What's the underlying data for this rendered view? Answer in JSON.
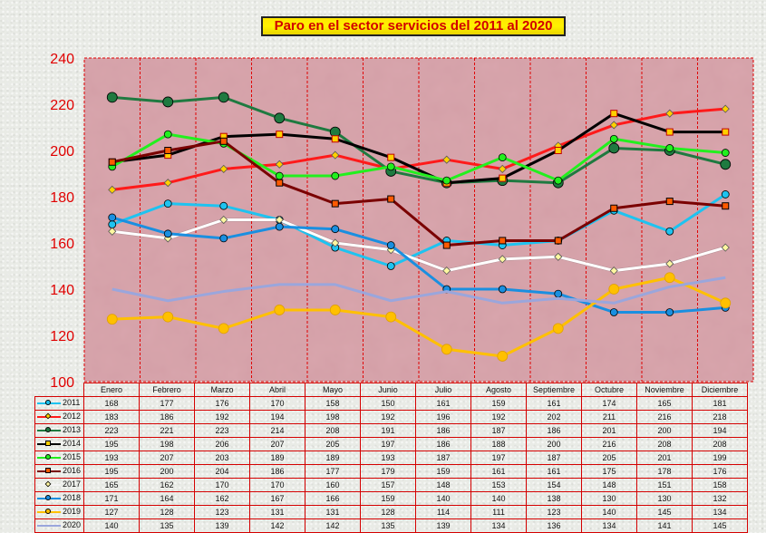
{
  "chart_data": {
    "type": "line",
    "title": "Paro en el sector servicios del 2011 al 2020",
    "categories": [
      "Enero",
      "Febrero",
      "Marzo",
      "Abril",
      "Mayo",
      "Junio",
      "Julio",
      "Agosto",
      "Septiembre",
      "Octubre",
      "Noviembre",
      "Diciembre"
    ],
    "ylim": [
      100,
      240
    ],
    "yticks": [
      "100",
      "120",
      "140",
      "160",
      "180",
      "200",
      "220",
      "240"
    ],
    "grid": true,
    "legend": "data-table-left",
    "series": [
      {
        "name": "2011",
        "color": "#1ec3f0",
        "marker": "circle",
        "values": [
          168,
          177,
          176,
          170,
          158,
          150,
          161,
          159,
          161,
          174,
          165,
          181
        ]
      },
      {
        "name": "2012",
        "color": "#ff1a1a",
        "marker": "diamond",
        "values": [
          183,
          186,
          192,
          194,
          198,
          192,
          196,
          192,
          202,
          211,
          216,
          218
        ]
      },
      {
        "name": "2013",
        "color": "#1f7a40",
        "marker": "circle",
        "values": [
          223,
          221,
          223,
          214,
          208,
          191,
          186,
          187,
          186,
          201,
          200,
          194
        ]
      },
      {
        "name": "2014",
        "color": "#000000",
        "marker": "square",
        "values": [
          195,
          198,
          206,
          207,
          205,
          197,
          186,
          188,
          200,
          216,
          208,
          208
        ]
      },
      {
        "name": "2015",
        "color": "#22f01e",
        "marker": "circle",
        "values": [
          193,
          207,
          203,
          189,
          189,
          193,
          187,
          197,
          187,
          205,
          201,
          199
        ]
      },
      {
        "name": "2016",
        "color": "#7a0000",
        "marker": "square",
        "values": [
          195,
          200,
          204,
          186,
          177,
          179,
          159,
          161,
          161,
          175,
          178,
          176
        ]
      },
      {
        "name": "2017",
        "color": "#ffffff",
        "marker": "diamond",
        "values": [
          165,
          162,
          170,
          170,
          160,
          157,
          148,
          153,
          154,
          148,
          151,
          158
        ]
      },
      {
        "name": "2018",
        "color": "#1a8fe0",
        "marker": "circle",
        "values": [
          171,
          164,
          162,
          167,
          166,
          159,
          140,
          140,
          138,
          130,
          130,
          132
        ]
      },
      {
        "name": "2019",
        "color": "#ffc000",
        "marker": "circle",
        "values": [
          127,
          128,
          123,
          131,
          131,
          128,
          114,
          111,
          123,
          140,
          145,
          134
        ]
      },
      {
        "name": "2020",
        "color": "#9aa6dc",
        "marker": "none",
        "values": [
          140,
          135,
          139,
          142,
          142,
          135,
          139,
          134,
          136,
          134,
          141,
          145
        ]
      }
    ]
  }
}
